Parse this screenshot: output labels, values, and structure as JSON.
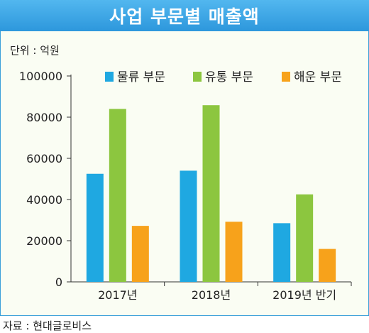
{
  "header": {
    "title": "사업 부문별 매출액"
  },
  "unit_label": "단위 : 억원",
  "source_label": "자료 : 현대글로비스",
  "colors": {
    "background": "#fafdf3",
    "title_bar": "#3a9fd9",
    "axis": "#333333"
  },
  "chart_data": {
    "type": "bar",
    "title": "사업 부문별 매출액",
    "categories": [
      "2017년",
      "2018년",
      "2019년 반기"
    ],
    "series": [
      {
        "name": "물류 부문",
        "color": "#1fa8e1",
        "values": [
          52500,
          54000,
          28500
        ]
      },
      {
        "name": "유통 부문",
        "color": "#8cc63f",
        "values": [
          84000,
          85800,
          42500
        ]
      },
      {
        "name": "해운 부문",
        "color": "#f7a21b",
        "values": [
          27200,
          29200,
          16000
        ]
      }
    ],
    "yticks": [
      "0",
      "20000",
      "40000",
      "60000",
      "80000",
      "100000"
    ],
    "ylim": [
      0,
      100000
    ],
    "grid": false,
    "legend_position": "top"
  }
}
